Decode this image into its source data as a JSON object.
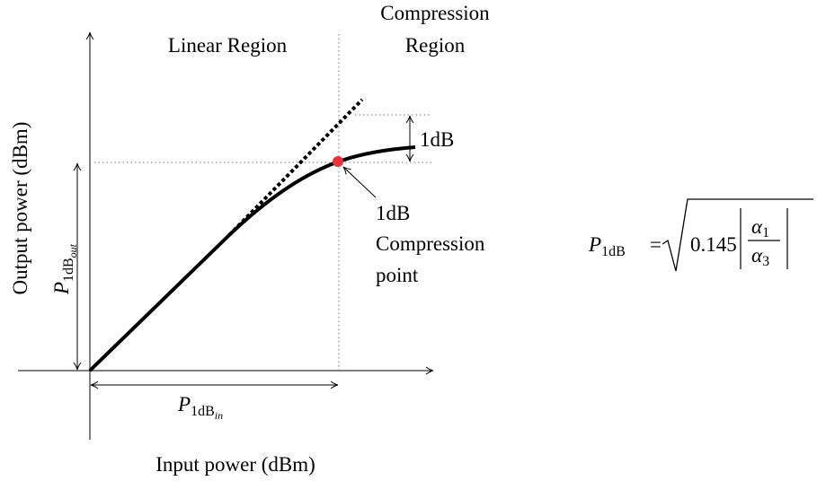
{
  "regions": {
    "linear": "Linear Region",
    "compression": [
      "Compression",
      "Region"
    ]
  },
  "axes": {
    "y_label": "Output power (dBm)",
    "x_label": "Input power (dBm)"
  },
  "annotations": {
    "step": "1dB",
    "point": [
      "1dB",
      "Compression",
      "point"
    ]
  },
  "markers": {
    "p_out": {
      "symbol": "P",
      "subscript": "1dB",
      "sub_subscript": "out"
    },
    "p_in": {
      "symbol": "P",
      "subscript": "1dB",
      "sub_subscript": "in"
    }
  },
  "formula": {
    "symbol": "P",
    "subscript": "1dB",
    "equals": "=",
    "coefficient": "0.145",
    "numerator": {
      "symbol": "α",
      "subscript": "1"
    },
    "denominator": {
      "symbol": "α",
      "subscript": "3"
    }
  }
}
